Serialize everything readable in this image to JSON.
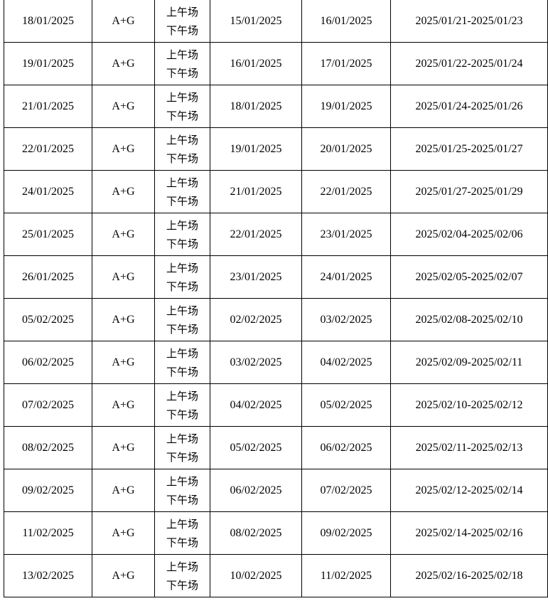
{
  "rows": [
    {
      "date": "18/01/2025",
      "type": "A+G",
      "sessions": [
        "上午场",
        "下午场"
      ],
      "d1": "15/01/2025",
      "d2": "16/01/2025",
      "range": "2025/01/21-2025/01/23"
    },
    {
      "date": "19/01/2025",
      "type": "A+G",
      "sessions": [
        "上午场",
        "下午场"
      ],
      "d1": "16/01/2025",
      "d2": "17/01/2025",
      "range": "2025/01/22-2025/01/24"
    },
    {
      "date": "21/01/2025",
      "type": "A+G",
      "sessions": [
        "上午场",
        "下午场"
      ],
      "d1": "18/01/2025",
      "d2": "19/01/2025",
      "range": "2025/01/24-2025/01/26"
    },
    {
      "date": "22/01/2025",
      "type": "A+G",
      "sessions": [
        "上午场",
        "下午场"
      ],
      "d1": "19/01/2025",
      "d2": "20/01/2025",
      "range": "2025/01/25-2025/01/27"
    },
    {
      "date": "24/01/2025",
      "type": "A+G",
      "sessions": [
        "上午场",
        "下午场"
      ],
      "d1": "21/01/2025",
      "d2": "22/01/2025",
      "range": "2025/01/27-2025/01/29"
    },
    {
      "date": "25/01/2025",
      "type": "A+G",
      "sessions": [
        "上午场",
        "下午场"
      ],
      "d1": "22/01/2025",
      "d2": "23/01/2025",
      "range": "2025/02/04-2025/02/06"
    },
    {
      "date": "26/01/2025",
      "type": "A+G",
      "sessions": [
        "上午场",
        "下午场"
      ],
      "d1": "23/01/2025",
      "d2": "24/01/2025",
      "range": "2025/02/05-2025/02/07"
    },
    {
      "date": "05/02/2025",
      "type": "A+G",
      "sessions": [
        "上午场",
        "下午场"
      ],
      "d1": "02/02/2025",
      "d2": "03/02/2025",
      "range": "2025/02/08-2025/02/10"
    },
    {
      "date": "06/02/2025",
      "type": "A+G",
      "sessions": [
        "上午场",
        "下午场"
      ],
      "d1": "03/02/2025",
      "d2": "04/02/2025",
      "range": "2025/02/09-2025/02/11"
    },
    {
      "date": "07/02/2025",
      "type": "A+G",
      "sessions": [
        "上午场",
        "下午场"
      ],
      "d1": "04/02/2025",
      "d2": "05/02/2025",
      "range": "2025/02/10-2025/02/12"
    },
    {
      "date": "08/02/2025",
      "type": "A+G",
      "sessions": [
        "上午场",
        "下午场"
      ],
      "d1": "05/02/2025",
      "d2": "06/02/2025",
      "range": "2025/02/11-2025/02/13"
    },
    {
      "date": "09/02/2025",
      "type": "A+G",
      "sessions": [
        "上午场",
        "下午场"
      ],
      "d1": "06/02/2025",
      "d2": "07/02/2025",
      "range": "2025/02/12-2025/02/14"
    },
    {
      "date": "11/02/2025",
      "type": "A+G",
      "sessions": [
        "上午场",
        "下午场"
      ],
      "d1": "08/02/2025",
      "d2": "09/02/2025",
      "range": "2025/02/14-2025/02/16"
    },
    {
      "date": "13/02/2025",
      "type": "A+G",
      "sessions": [
        "上午场",
        "下午场"
      ],
      "d1": "10/02/2025",
      "d2": "11/02/2025",
      "range": "2025/02/16-2025/02/18"
    }
  ]
}
